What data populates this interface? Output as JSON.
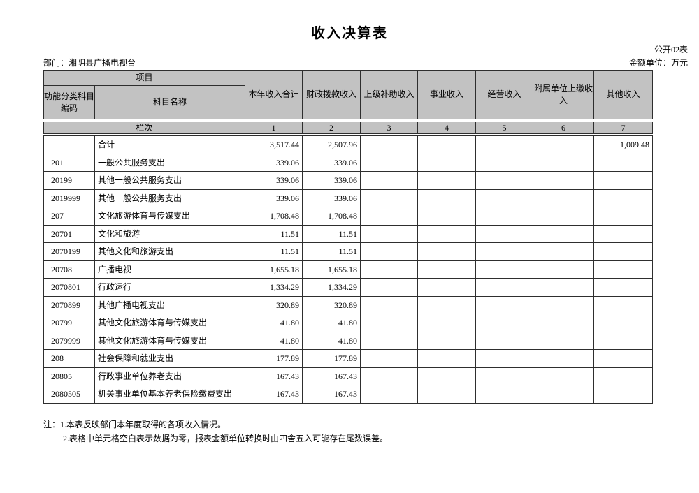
{
  "page": {
    "title": "收入决算表",
    "table_code": "公开02表",
    "department_label": "部门：湘阴县广播电视台",
    "unit_label": "金额单位：万元"
  },
  "colors": {
    "header_bg": "#c2c2c2",
    "border": "#2e2e2e"
  },
  "table": {
    "header": {
      "project": "项目",
      "function_code": "功能分类科目编码",
      "subject_name": "科目名称",
      "columns": [
        "本年收入合计",
        "财政拨款收入",
        "上级补助收入",
        "事业收入",
        "经营收入",
        "附属单位上缴收入",
        "其他收入"
      ],
      "lanci_label": "栏次",
      "lanci_numbers": [
        "1",
        "2",
        "3",
        "4",
        "5",
        "6",
        "7"
      ]
    },
    "rows": [
      {
        "code": "",
        "name": "合计",
        "values": [
          "3,517.44",
          "2,507.96",
          "",
          "",
          "",
          "",
          "1,009.48"
        ]
      },
      {
        "code": "201",
        "name": "一般公共服务支出",
        "values": [
          "339.06",
          "339.06",
          "",
          "",
          "",
          "",
          ""
        ]
      },
      {
        "code": "20199",
        "name": "其他一般公共服务支出",
        "values": [
          "339.06",
          "339.06",
          "",
          "",
          "",
          "",
          ""
        ]
      },
      {
        "code": "2019999",
        "name": "其他一般公共服务支出",
        "values": [
          "339.06",
          "339.06",
          "",
          "",
          "",
          "",
          ""
        ]
      },
      {
        "code": "207",
        "name": "文化旅游体育与传媒支出",
        "values": [
          "1,708.48",
          "1,708.48",
          "",
          "",
          "",
          "",
          ""
        ]
      },
      {
        "code": "20701",
        "name": "文化和旅游",
        "values": [
          "11.51",
          "11.51",
          "",
          "",
          "",
          "",
          ""
        ]
      },
      {
        "code": "2070199",
        "name": "其他文化和旅游支出",
        "values": [
          "11.51",
          "11.51",
          "",
          "",
          "",
          "",
          ""
        ]
      },
      {
        "code": "20708",
        "name": "广播电视",
        "values": [
          "1,655.18",
          "1,655.18",
          "",
          "",
          "",
          "",
          ""
        ]
      },
      {
        "code": "2070801",
        "name": "行政运行",
        "values": [
          "1,334.29",
          "1,334.29",
          "",
          "",
          "",
          "",
          ""
        ]
      },
      {
        "code": "2070899",
        "name": "其他广播电视支出",
        "values": [
          "320.89",
          "320.89",
          "",
          "",
          "",
          "",
          ""
        ]
      },
      {
        "code": "20799",
        "name": "其他文化旅游体育与传媒支出",
        "values": [
          "41.80",
          "41.80",
          "",
          "",
          "",
          "",
          ""
        ]
      },
      {
        "code": "2079999",
        "name": "其他文化旅游体育与传媒支出",
        "values": [
          "41.80",
          "41.80",
          "",
          "",
          "",
          "",
          ""
        ]
      },
      {
        "code": "208",
        "name": "社会保障和就业支出",
        "values": [
          "177.89",
          "177.89",
          "",
          "",
          "",
          "",
          ""
        ]
      },
      {
        "code": "20805",
        "name": "行政事业单位养老支出",
        "values": [
          "167.43",
          "167.43",
          "",
          "",
          "",
          "",
          ""
        ]
      },
      {
        "code": "2080505",
        "name": "机关事业单位基本养老保险缴费支出",
        "values": [
          "167.43",
          "167.43",
          "",
          "",
          "",
          "",
          ""
        ]
      }
    ]
  },
  "notes": {
    "line1": "注：1.本表反映部门本年度取得的各项收入情况。",
    "line2": "2.表格中单元格空白表示数据为零，报表金额单位转换时由四舍五入可能存在尾数误差。"
  }
}
